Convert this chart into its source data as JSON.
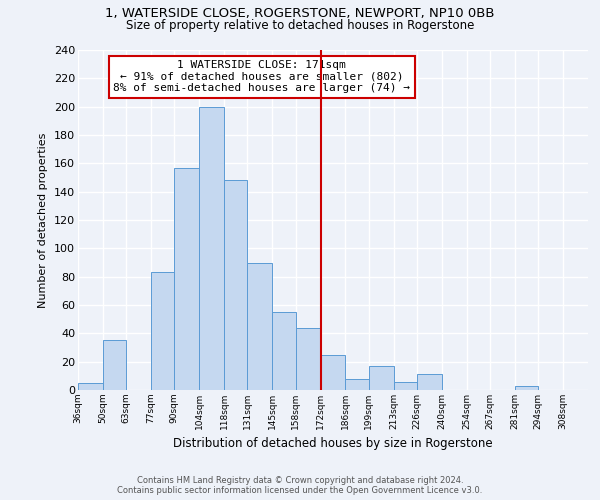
{
  "title1": "1, WATERSIDE CLOSE, ROGERSTONE, NEWPORT, NP10 0BB",
  "title2": "Size of property relative to detached houses in Rogerstone",
  "xlabel": "Distribution of detached houses by size in Rogerstone",
  "ylabel": "Number of detached properties",
  "bin_labels": [
    "36sqm",
    "50sqm",
    "63sqm",
    "77sqm",
    "90sqm",
    "104sqm",
    "118sqm",
    "131sqm",
    "145sqm",
    "158sqm",
    "172sqm",
    "186sqm",
    "199sqm",
    "213sqm",
    "226sqm",
    "240sqm",
    "254sqm",
    "267sqm",
    "281sqm",
    "294sqm",
    "308sqm"
  ],
  "bin_edges": [
    36,
    50,
    63,
    77,
    90,
    104,
    118,
    131,
    145,
    158,
    172,
    186,
    199,
    213,
    226,
    240,
    254,
    267,
    281,
    294,
    308
  ],
  "bar_heights": [
    5,
    35,
    0,
    83,
    157,
    200,
    148,
    90,
    55,
    44,
    25,
    8,
    17,
    6,
    11,
    0,
    0,
    0,
    3,
    0,
    0
  ],
  "bar_color": "#c5d8f0",
  "bar_edge_color": "#5b9bd5",
  "vline_x": 172,
  "vline_color": "#cc0000",
  "annotation_title": "1 WATERSIDE CLOSE: 171sqm",
  "annotation_line1": "← 91% of detached houses are smaller (802)",
  "annotation_line2": "8% of semi-detached houses are larger (74) →",
  "annotation_box_color": "#ffffff",
  "annotation_box_edge": "#cc0000",
  "ylim": [
    0,
    240
  ],
  "yticks": [
    0,
    20,
    40,
    60,
    80,
    100,
    120,
    140,
    160,
    180,
    200,
    220,
    240
  ],
  "footer1": "Contains HM Land Registry data © Crown copyright and database right 2024.",
  "footer2": "Contains public sector information licensed under the Open Government Licence v3.0.",
  "bg_color": "#eef2f9"
}
